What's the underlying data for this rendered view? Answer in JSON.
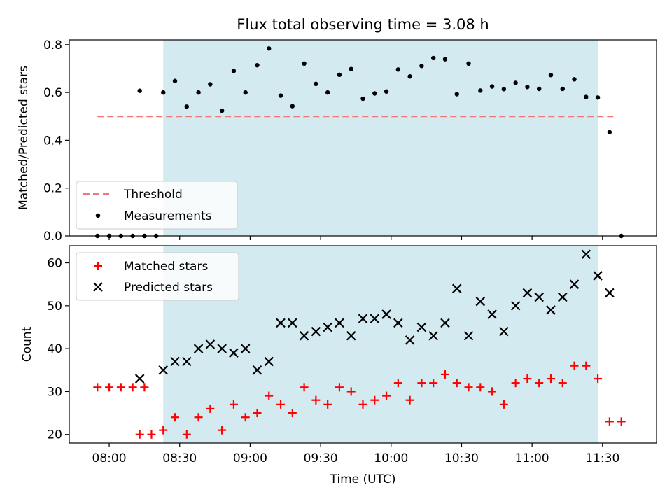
{
  "chart_data": [
    {
      "type": "scatter",
      "title": "Flux total observing time = 3.08 h",
      "xlabel": "",
      "ylabel": "Matched/Predicted stars",
      "xlim": [
        "07:43",
        "11:53"
      ],
      "ylim": [
        0,
        0.82
      ],
      "yticks": [
        "0.0",
        "0.2",
        "0.4",
        "0.6",
        "0.8"
      ],
      "shaded_span": [
        "08:23",
        "11:28"
      ],
      "shaded_color": "#d4eaf1",
      "threshold": {
        "name": "Threshold",
        "value": 0.5,
        "x_range": [
          "07:55",
          "11:36"
        ],
        "color": "#f07777"
      },
      "series": [
        {
          "name": "Measurements",
          "color": "#000000",
          "points": [
            [
              "07:55",
              0.0
            ],
            [
              "08:00",
              0.0
            ],
            [
              "08:05",
              0.0
            ],
            [
              "08:10",
              0.0
            ],
            [
              "08:15",
              0.0
            ],
            [
              "08:20",
              0.0
            ],
            [
              "08:13",
              0.607
            ],
            [
              "08:23",
              0.6
            ],
            [
              "08:28",
              0.648
            ],
            [
              "08:33",
              0.541
            ],
            [
              "08:38",
              0.6
            ],
            [
              "08:43",
              0.634
            ],
            [
              "08:48",
              0.524
            ],
            [
              "08:53",
              0.69
            ],
            [
              "08:58",
              0.6
            ],
            [
              "09:03",
              0.714
            ],
            [
              "09:08",
              0.784
            ],
            [
              "09:13",
              0.587
            ],
            [
              "09:18",
              0.543
            ],
            [
              "09:23",
              0.721
            ],
            [
              "09:28",
              0.636
            ],
            [
              "09:33",
              0.6
            ],
            [
              "09:38",
              0.674
            ],
            [
              "09:43",
              0.698
            ],
            [
              "09:48",
              0.574
            ],
            [
              "09:53",
              0.596
            ],
            [
              "09:58",
              0.604
            ],
            [
              "10:03",
              0.696
            ],
            [
              "10:08",
              0.667
            ],
            [
              "10:13",
              0.711
            ],
            [
              "10:18",
              0.744
            ],
            [
              "10:23",
              0.739
            ],
            [
              "10:28",
              0.593
            ],
            [
              "10:33",
              0.721
            ],
            [
              "10:38",
              0.608
            ],
            [
              "10:43",
              0.625
            ],
            [
              "10:48",
              0.614
            ],
            [
              "10:53",
              0.64
            ],
            [
              "10:58",
              0.623
            ],
            [
              "11:03",
              0.615
            ],
            [
              "11:08",
              0.673
            ],
            [
              "11:13",
              0.615
            ],
            [
              "11:18",
              0.655
            ],
            [
              "11:23",
              0.581
            ],
            [
              "11:28",
              0.579
            ],
            [
              "11:33",
              0.434
            ],
            [
              "11:38",
              0.0
            ]
          ]
        }
      ],
      "legend": {
        "placement": "lower-left",
        "entries": [
          "Threshold",
          "Measurements"
        ]
      }
    },
    {
      "type": "scatter",
      "title": "",
      "xlabel": "Time (UTC)",
      "ylabel": "Count",
      "xlim": [
        "07:43",
        "11:53"
      ],
      "ylim": [
        18,
        64
      ],
      "yticks": [
        "20",
        "30",
        "40",
        "50",
        "60"
      ],
      "xticks": [
        "08:00",
        "08:30",
        "09:00",
        "09:30",
        "10:00",
        "10:30",
        "11:00",
        "11:30"
      ],
      "shaded_span": [
        "08:23",
        "11:28"
      ],
      "series": [
        {
          "name": "Matched stars",
          "marker": "+",
          "color": "#ff0000",
          "points": [
            [
              "07:55",
              31
            ],
            [
              "08:00",
              31
            ],
            [
              "08:05",
              31
            ],
            [
              "08:10",
              31
            ],
            [
              "08:15",
              31
            ],
            [
              "08:13",
              20
            ],
            [
              "08:18",
              20
            ],
            [
              "08:23",
              21
            ],
            [
              "08:28",
              24
            ],
            [
              "08:33",
              20
            ],
            [
              "08:38",
              24
            ],
            [
              "08:43",
              26
            ],
            [
              "08:48",
              21
            ],
            [
              "08:53",
              27
            ],
            [
              "08:58",
              24
            ],
            [
              "09:03",
              25
            ],
            [
              "09:08",
              29
            ],
            [
              "09:13",
              27
            ],
            [
              "09:18",
              25
            ],
            [
              "09:23",
              31
            ],
            [
              "09:28",
              28
            ],
            [
              "09:33",
              27
            ],
            [
              "09:38",
              31
            ],
            [
              "09:43",
              30
            ],
            [
              "09:48",
              27
            ],
            [
              "09:53",
              28
            ],
            [
              "09:58",
              29
            ],
            [
              "10:03",
              32
            ],
            [
              "10:08",
              28
            ],
            [
              "10:13",
              32
            ],
            [
              "10:18",
              32
            ],
            [
              "10:23",
              34
            ],
            [
              "10:28",
              32
            ],
            [
              "10:33",
              31
            ],
            [
              "10:38",
              31
            ],
            [
              "10:43",
              30
            ],
            [
              "10:48",
              27
            ],
            [
              "10:53",
              32
            ],
            [
              "10:58",
              33
            ],
            [
              "11:03",
              32
            ],
            [
              "11:08",
              33
            ],
            [
              "11:13",
              32
            ],
            [
              "11:18",
              36
            ],
            [
              "11:23",
              36
            ],
            [
              "11:28",
              33
            ],
            [
              "11:33",
              23
            ],
            [
              "11:38",
              23
            ]
          ]
        },
        {
          "name": "Predicted stars",
          "marker": "x",
          "color": "#000000",
          "points": [
            [
              "08:13",
              33
            ],
            [
              "08:23",
              35
            ],
            [
              "08:28",
              37
            ],
            [
              "08:33",
              37
            ],
            [
              "08:38",
              40
            ],
            [
              "08:43",
              41
            ],
            [
              "08:48",
              40
            ],
            [
              "08:53",
              39
            ],
            [
              "08:58",
              40
            ],
            [
              "09:03",
              35
            ],
            [
              "09:08",
              37
            ],
            [
              "09:13",
              46
            ],
            [
              "09:18",
              46
            ],
            [
              "09:23",
              43
            ],
            [
              "09:28",
              44
            ],
            [
              "09:33",
              45
            ],
            [
              "09:38",
              46
            ],
            [
              "09:43",
              43
            ],
            [
              "09:48",
              47
            ],
            [
              "09:53",
              47
            ],
            [
              "09:58",
              48
            ],
            [
              "10:03",
              46
            ],
            [
              "10:08",
              42
            ],
            [
              "10:13",
              45
            ],
            [
              "10:18",
              43
            ],
            [
              "10:23",
              46
            ],
            [
              "10:28",
              54
            ],
            [
              "10:33",
              43
            ],
            [
              "10:38",
              51
            ],
            [
              "10:43",
              48
            ],
            [
              "10:48",
              44
            ],
            [
              "10:53",
              50
            ],
            [
              "10:58",
              53
            ],
            [
              "11:03",
              52
            ],
            [
              "11:08",
              49
            ],
            [
              "11:13",
              52
            ],
            [
              "11:18",
              55
            ],
            [
              "11:23",
              62
            ],
            [
              "11:28",
              57
            ],
            [
              "11:33",
              53
            ]
          ]
        }
      ],
      "legend": {
        "placement": "upper-left",
        "entries": [
          "Matched stars",
          "Predicted stars"
        ]
      }
    }
  ]
}
